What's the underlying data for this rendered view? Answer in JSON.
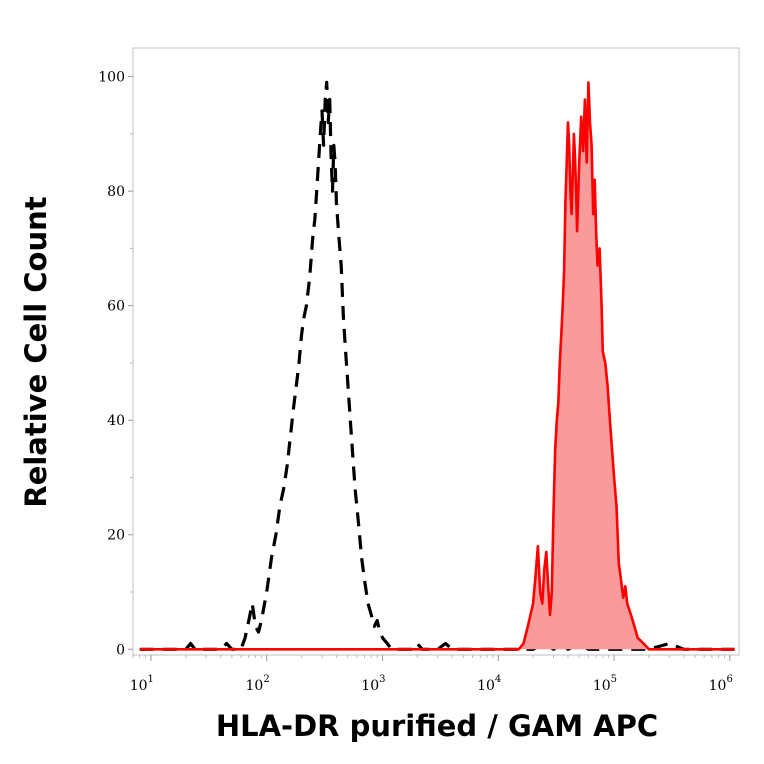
{
  "chart_data": {
    "type": "area",
    "title": "",
    "xlabel": "HLA-DR purified / GAM APC",
    "ylabel": "Relative Cell Count",
    "xscale": "log",
    "xlim": [
      7,
      1200000
    ],
    "ylim": [
      -1,
      105
    ],
    "grid": false,
    "y_ticks": [
      {
        "value": 0,
        "label": "0"
      },
      {
        "value": 20,
        "label": "20"
      },
      {
        "value": 40,
        "label": "40"
      },
      {
        "value": 60,
        "label": "60"
      },
      {
        "value": 80,
        "label": "80"
      },
      {
        "value": 100,
        "label": "100"
      }
    ],
    "x_ticks": [
      {
        "value": 10,
        "base": "10",
        "exp": "1"
      },
      {
        "value": 100,
        "base": "10",
        "exp": "2"
      },
      {
        "value": 1000,
        "base": "10",
        "exp": "3"
      },
      {
        "value": 10000,
        "base": "10",
        "exp": "4"
      },
      {
        "value": 100000,
        "base": "10",
        "exp": "5"
      },
      {
        "value": 1000000,
        "base": "10",
        "exp": "6"
      }
    ],
    "series": [
      {
        "style": "dashed",
        "color": "#000000",
        "fill": "none",
        "points": [
          [
            8,
            0
          ],
          [
            15,
            0
          ],
          [
            20,
            0
          ],
          [
            22,
            1
          ],
          [
            24,
            0
          ],
          [
            30,
            0
          ],
          [
            40,
            0
          ],
          [
            45,
            1
          ],
          [
            50,
            0
          ],
          [
            60,
            0
          ],
          [
            65,
            2
          ],
          [
            70,
            5
          ],
          [
            75,
            8
          ],
          [
            80,
            4
          ],
          [
            85,
            3
          ],
          [
            90,
            5
          ],
          [
            100,
            10
          ],
          [
            110,
            16
          ],
          [
            120,
            20
          ],
          [
            130,
            25
          ],
          [
            140,
            28
          ],
          [
            150,
            32
          ],
          [
            160,
            37
          ],
          [
            170,
            42
          ],
          [
            180,
            46
          ],
          [
            190,
            50
          ],
          [
            200,
            55
          ],
          [
            210,
            58
          ],
          [
            220,
            60
          ],
          [
            235,
            65
          ],
          [
            250,
            72
          ],
          [
            260,
            75
          ],
          [
            270,
            80
          ],
          [
            280,
            85
          ],
          [
            290,
            90
          ],
          [
            300,
            94
          ],
          [
            310,
            88
          ],
          [
            320,
            96
          ],
          [
            330,
            99
          ],
          [
            340,
            92
          ],
          [
            350,
            96
          ],
          [
            360,
            86
          ],
          [
            370,
            80
          ],
          [
            380,
            88
          ],
          [
            390,
            85
          ],
          [
            400,
            78
          ],
          [
            420,
            72
          ],
          [
            440,
            67
          ],
          [
            460,
            58
          ],
          [
            480,
            52
          ],
          [
            500,
            47
          ],
          [
            540,
            37
          ],
          [
            580,
            28
          ],
          [
            620,
            22
          ],
          [
            660,
            16
          ],
          [
            700,
            12
          ],
          [
            750,
            8
          ],
          [
            800,
            6
          ],
          [
            850,
            4
          ],
          [
            900,
            5
          ],
          [
            950,
            3
          ],
          [
            1000,
            2
          ],
          [
            1100,
            1
          ],
          [
            1200,
            0
          ],
          [
            1500,
            0
          ],
          [
            1800,
            0
          ],
          [
            2000,
            1
          ],
          [
            2200,
            0
          ],
          [
            3000,
            0
          ],
          [
            3500,
            1
          ],
          [
            4000,
            0
          ],
          [
            6000,
            0
          ],
          [
            10000,
            0
          ],
          [
            20000,
            0
          ],
          [
            25000,
            1
          ],
          [
            30000,
            0
          ],
          [
            35000,
            1
          ],
          [
            40000,
            0
          ],
          [
            50000,
            1
          ],
          [
            60000,
            0
          ],
          [
            100000,
            0
          ],
          [
            200000,
            0
          ],
          [
            300000,
            1
          ],
          [
            400000,
            0
          ],
          [
            1100000,
            0
          ]
        ]
      },
      {
        "style": "solid",
        "color": "#ff0000",
        "fill": "#fa9b9b",
        "points": [
          [
            8,
            0
          ],
          [
            1000,
            0
          ],
          [
            10000,
            0
          ],
          [
            15000,
            0
          ],
          [
            16500,
            1
          ],
          [
            18000,
            4
          ],
          [
            20000,
            8
          ],
          [
            21000,
            13
          ],
          [
            22000,
            18
          ],
          [
            23000,
            10
          ],
          [
            24000,
            8
          ],
          [
            25000,
            14
          ],
          [
            26000,
            17
          ],
          [
            27000,
            11
          ],
          [
            28000,
            6
          ],
          [
            29000,
            10
          ],
          [
            30000,
            24
          ],
          [
            31000,
            35
          ],
          [
            32000,
            40
          ],
          [
            33000,
            43
          ],
          [
            34000,
            50
          ],
          [
            35000,
            55
          ],
          [
            36000,
            60
          ],
          [
            37000,
            66
          ],
          [
            38000,
            78
          ],
          [
            39000,
            85
          ],
          [
            40000,
            92
          ],
          [
            41000,
            88
          ],
          [
            42000,
            80
          ],
          [
            43000,
            76
          ],
          [
            44000,
            83
          ],
          [
            45000,
            90
          ],
          [
            46000,
            86
          ],
          [
            47000,
            80
          ],
          [
            48000,
            73
          ],
          [
            50000,
            85
          ],
          [
            52000,
            93
          ],
          [
            54000,
            87
          ],
          [
            56000,
            96
          ],
          [
            58000,
            85
          ],
          [
            60000,
            99
          ],
          [
            62000,
            92
          ],
          [
            64000,
            88
          ],
          [
            66000,
            76
          ],
          [
            68000,
            82
          ],
          [
            70000,
            73
          ],
          [
            72000,
            67
          ],
          [
            75000,
            70
          ],
          [
            78000,
            60
          ],
          [
            80000,
            52
          ],
          [
            84000,
            50
          ],
          [
            88000,
            46
          ],
          [
            92000,
            40
          ],
          [
            96000,
            35
          ],
          [
            100000,
            30
          ],
          [
            105000,
            25
          ],
          [
            110000,
            15
          ],
          [
            115000,
            12
          ],
          [
            120000,
            9
          ],
          [
            125000,
            11
          ],
          [
            130000,
            8
          ],
          [
            140000,
            6
          ],
          [
            150000,
            4
          ],
          [
            160000,
            2
          ],
          [
            180000,
            1
          ],
          [
            200000,
            0
          ],
          [
            1100000,
            0
          ]
        ]
      }
    ]
  }
}
